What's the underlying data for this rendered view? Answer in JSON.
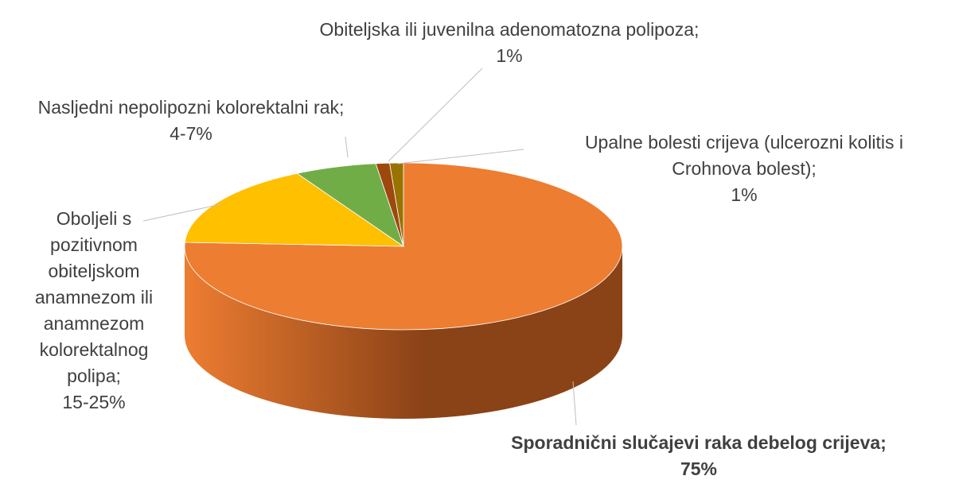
{
  "chart_data": {
    "type": "pie",
    "style": "3d",
    "slices": [
      {
        "label_lines": [
          "Sporadnični slučajevi raka debelog crijeva;",
          "75%"
        ],
        "value": 75,
        "color": "#ED7D31",
        "side_color": "#8A4217",
        "bold": true
      },
      {
        "label_lines": [
          "Oboljeli s",
          "pozitivnom",
          "obiteljskom",
          "anamnezom ili",
          "anamnezom",
          "kolorektalnog",
          "polipa;",
          "15-25%"
        ],
        "value": 16,
        "color": "#FFC000",
        "side_color": "#9C7500",
        "bold": false
      },
      {
        "label_lines": [
          "Nasljedni nepolipozni kolorektalni rak;",
          "4-7%"
        ],
        "value": 6,
        "color": "#70AD47",
        "side_color": "#41692A",
        "bold": false
      },
      {
        "label_lines": [
          "Obiteljska ili juvenilna adenomatozna polipoza;",
          "1%"
        ],
        "value": 1,
        "color": "#9E480E",
        "side_color": "#5E2A08",
        "bold": false
      },
      {
        "label_lines": [
          "Upalne bolesti crijeva (ulcerozni kolitis i",
          "Crohnova bolest);",
          "1%"
        ],
        "value": 1,
        "color": "#997300",
        "side_color": "#5C4500",
        "bold": false
      }
    ],
    "legend": "none",
    "start_angle_deg": 270,
    "direction": "clockwise"
  }
}
